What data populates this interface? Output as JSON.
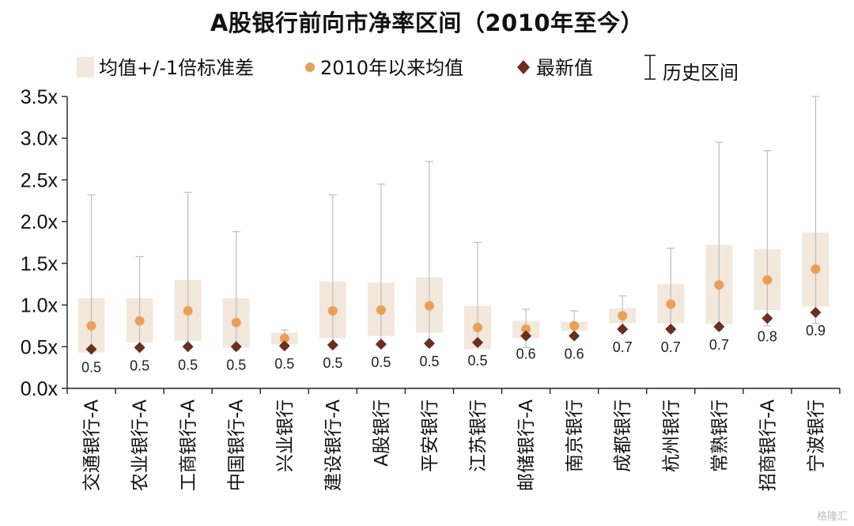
{
  "title": "A股银行前向市净率区间（2010年至今）",
  "watermark": "格隆汇",
  "chart_data": {
    "type": "range-box",
    "title": "A股银行前向市净率区间（2010年至今）",
    "ylim": [
      0,
      3.5
    ],
    "yticks": [
      "0.0x",
      "0.5x",
      "1.0x",
      "1.5x",
      "2.0x",
      "2.5x",
      "3.0x",
      "3.5x"
    ],
    "legend": {
      "box": "均值+/-1倍标准差",
      "mean": "2010年以来均值",
      "latest": "最新值",
      "range": "历史区间"
    },
    "colors": {
      "box": "#f3e8dc",
      "mean": "#e8a05a",
      "latest": "#6b2e1f",
      "range": "#bdbdbd"
    },
    "categories": [
      "交通银行-A",
      "农业银行-A",
      "工商银行-A",
      "中国银行-A",
      "兴业银行",
      "建设银行-A",
      "A股银行",
      "平安银行",
      "江苏银行",
      "邮储银行-A",
      "南京银行",
      "成都银行",
      "杭州银行",
      "常熟银行",
      "招商银行-A",
      "宁波银行"
    ],
    "mean": [
      0.75,
      0.81,
      0.93,
      0.79,
      0.6,
      0.93,
      0.94,
      0.99,
      0.73,
      0.71,
      0.75,
      0.87,
      1.01,
      1.24,
      1.3,
      1.43
    ],
    "latest": [
      0.47,
      0.49,
      0.5,
      0.5,
      0.51,
      0.52,
      0.53,
      0.54,
      0.55,
      0.63,
      0.63,
      0.71,
      0.71,
      0.74,
      0.84,
      0.91
    ],
    "latest_labels": [
      "0.5",
      "0.5",
      "0.5",
      "0.5",
      "0.5",
      "0.5",
      "0.5",
      "0.5",
      "0.5",
      "0.6",
      "0.6",
      "0.7",
      "0.7",
      "0.7",
      "0.8",
      "0.9"
    ],
    "box_low": [
      0.43,
      0.55,
      0.57,
      0.49,
      0.53,
      0.6,
      0.63,
      0.67,
      0.47,
      0.6,
      0.69,
      0.78,
      0.78,
      0.77,
      0.94,
      0.98
    ],
    "box_high": [
      1.08,
      1.08,
      1.3,
      1.08,
      0.67,
      1.28,
      1.27,
      1.33,
      0.99,
      0.81,
      0.8,
      0.96,
      1.25,
      1.72,
      1.67,
      1.87
    ],
    "range_low": [
      0.45,
      0.47,
      0.48,
      0.46,
      0.48,
      0.49,
      0.5,
      0.51,
      0.52,
      0.49,
      0.6,
      0.68,
      0.67,
      0.7,
      0.75,
      0.78
    ],
    "range_high": [
      2.32,
      1.58,
      2.35,
      1.88,
      0.7,
      2.32,
      2.45,
      2.72,
      1.75,
      0.95,
      0.93,
      1.11,
      1.68,
      2.95,
      2.85,
      3.5
    ]
  }
}
